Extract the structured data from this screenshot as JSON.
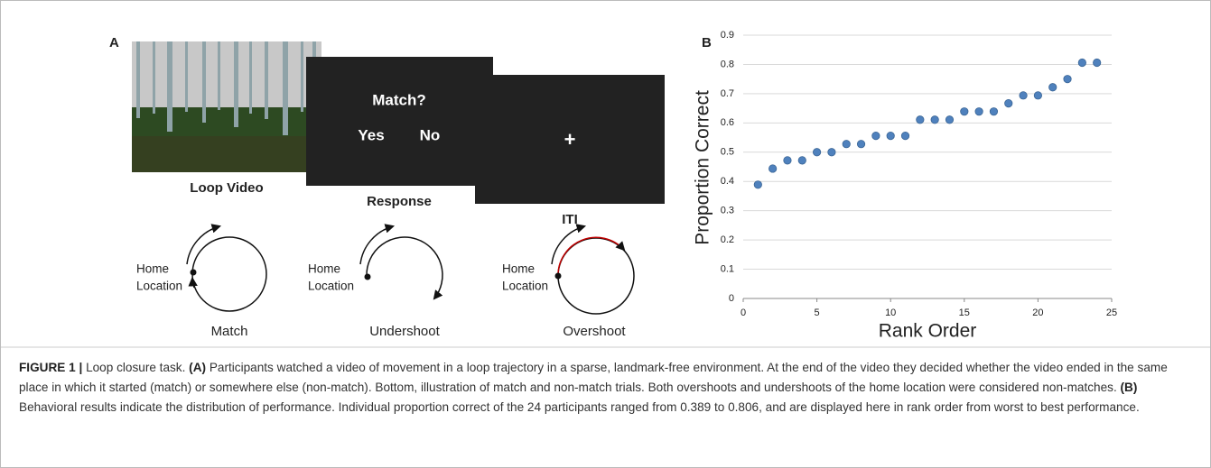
{
  "panel_a": {
    "label": "A",
    "screens": [
      {
        "title": "Loop Video"
      },
      {
        "title": "Response",
        "prompt": "Match?",
        "yes": "Yes",
        "no": "No"
      },
      {
        "title": "ITI",
        "symbol": "+"
      }
    ],
    "diagrams": [
      {
        "home": [
          "Home",
          "Location"
        ],
        "label": "Match"
      },
      {
        "home": [
          "Home",
          "Location"
        ],
        "label": "Undershoot"
      },
      {
        "home": [
          "Home",
          "Location"
        ],
        "label": "Overshoot"
      }
    ]
  },
  "chart_data": {
    "type": "scatter",
    "panel_label": "B",
    "x_label": "Rank Order",
    "y_label": "Proportion Correct",
    "x": [
      1,
      2,
      3,
      4,
      5,
      6,
      7,
      8,
      9,
      10,
      11,
      12,
      13,
      14,
      15,
      16,
      17,
      18,
      19,
      20,
      21,
      22,
      23,
      24
    ],
    "values": [
      0.389,
      0.444,
      0.472,
      0.472,
      0.5,
      0.5,
      0.528,
      0.528,
      0.556,
      0.556,
      0.556,
      0.611,
      0.611,
      0.611,
      0.639,
      0.639,
      0.639,
      0.667,
      0.694,
      0.694,
      0.722,
      0.75,
      0.806,
      0.806
    ],
    "color": "#4f81bd",
    "xlim": [
      0,
      25
    ],
    "xticks": [
      0,
      5,
      10,
      15,
      20,
      25
    ],
    "ylim": [
      0,
      0.9
    ],
    "yticks": [
      0,
      0.1,
      0.2,
      0.3,
      0.4,
      0.5,
      0.6,
      0.7,
      0.8,
      0.9
    ],
    "grid": true
  },
  "caption": {
    "label": "FIGURE 1 |",
    "title": "Loop closure task.",
    "a_label": "(A)",
    "a_text": "Participants watched a video of movement in a loop trajectory in a sparse, landmark-free environment. At the end of the video they decided whether the video ended in the same place in which it started (match) or somewhere else (non-match). Bottom, illustration of match and non-match trials. Both overshoots and undershoots of the home location were considered non-matches.",
    "b_label": "(B)",
    "b_text": "Behavioral results indicate the distribution of performance. Individual proportion correct of the 24 participants ranged from 0.389 to 0.806, and are displayed here in rank order from worst to best performance."
  }
}
